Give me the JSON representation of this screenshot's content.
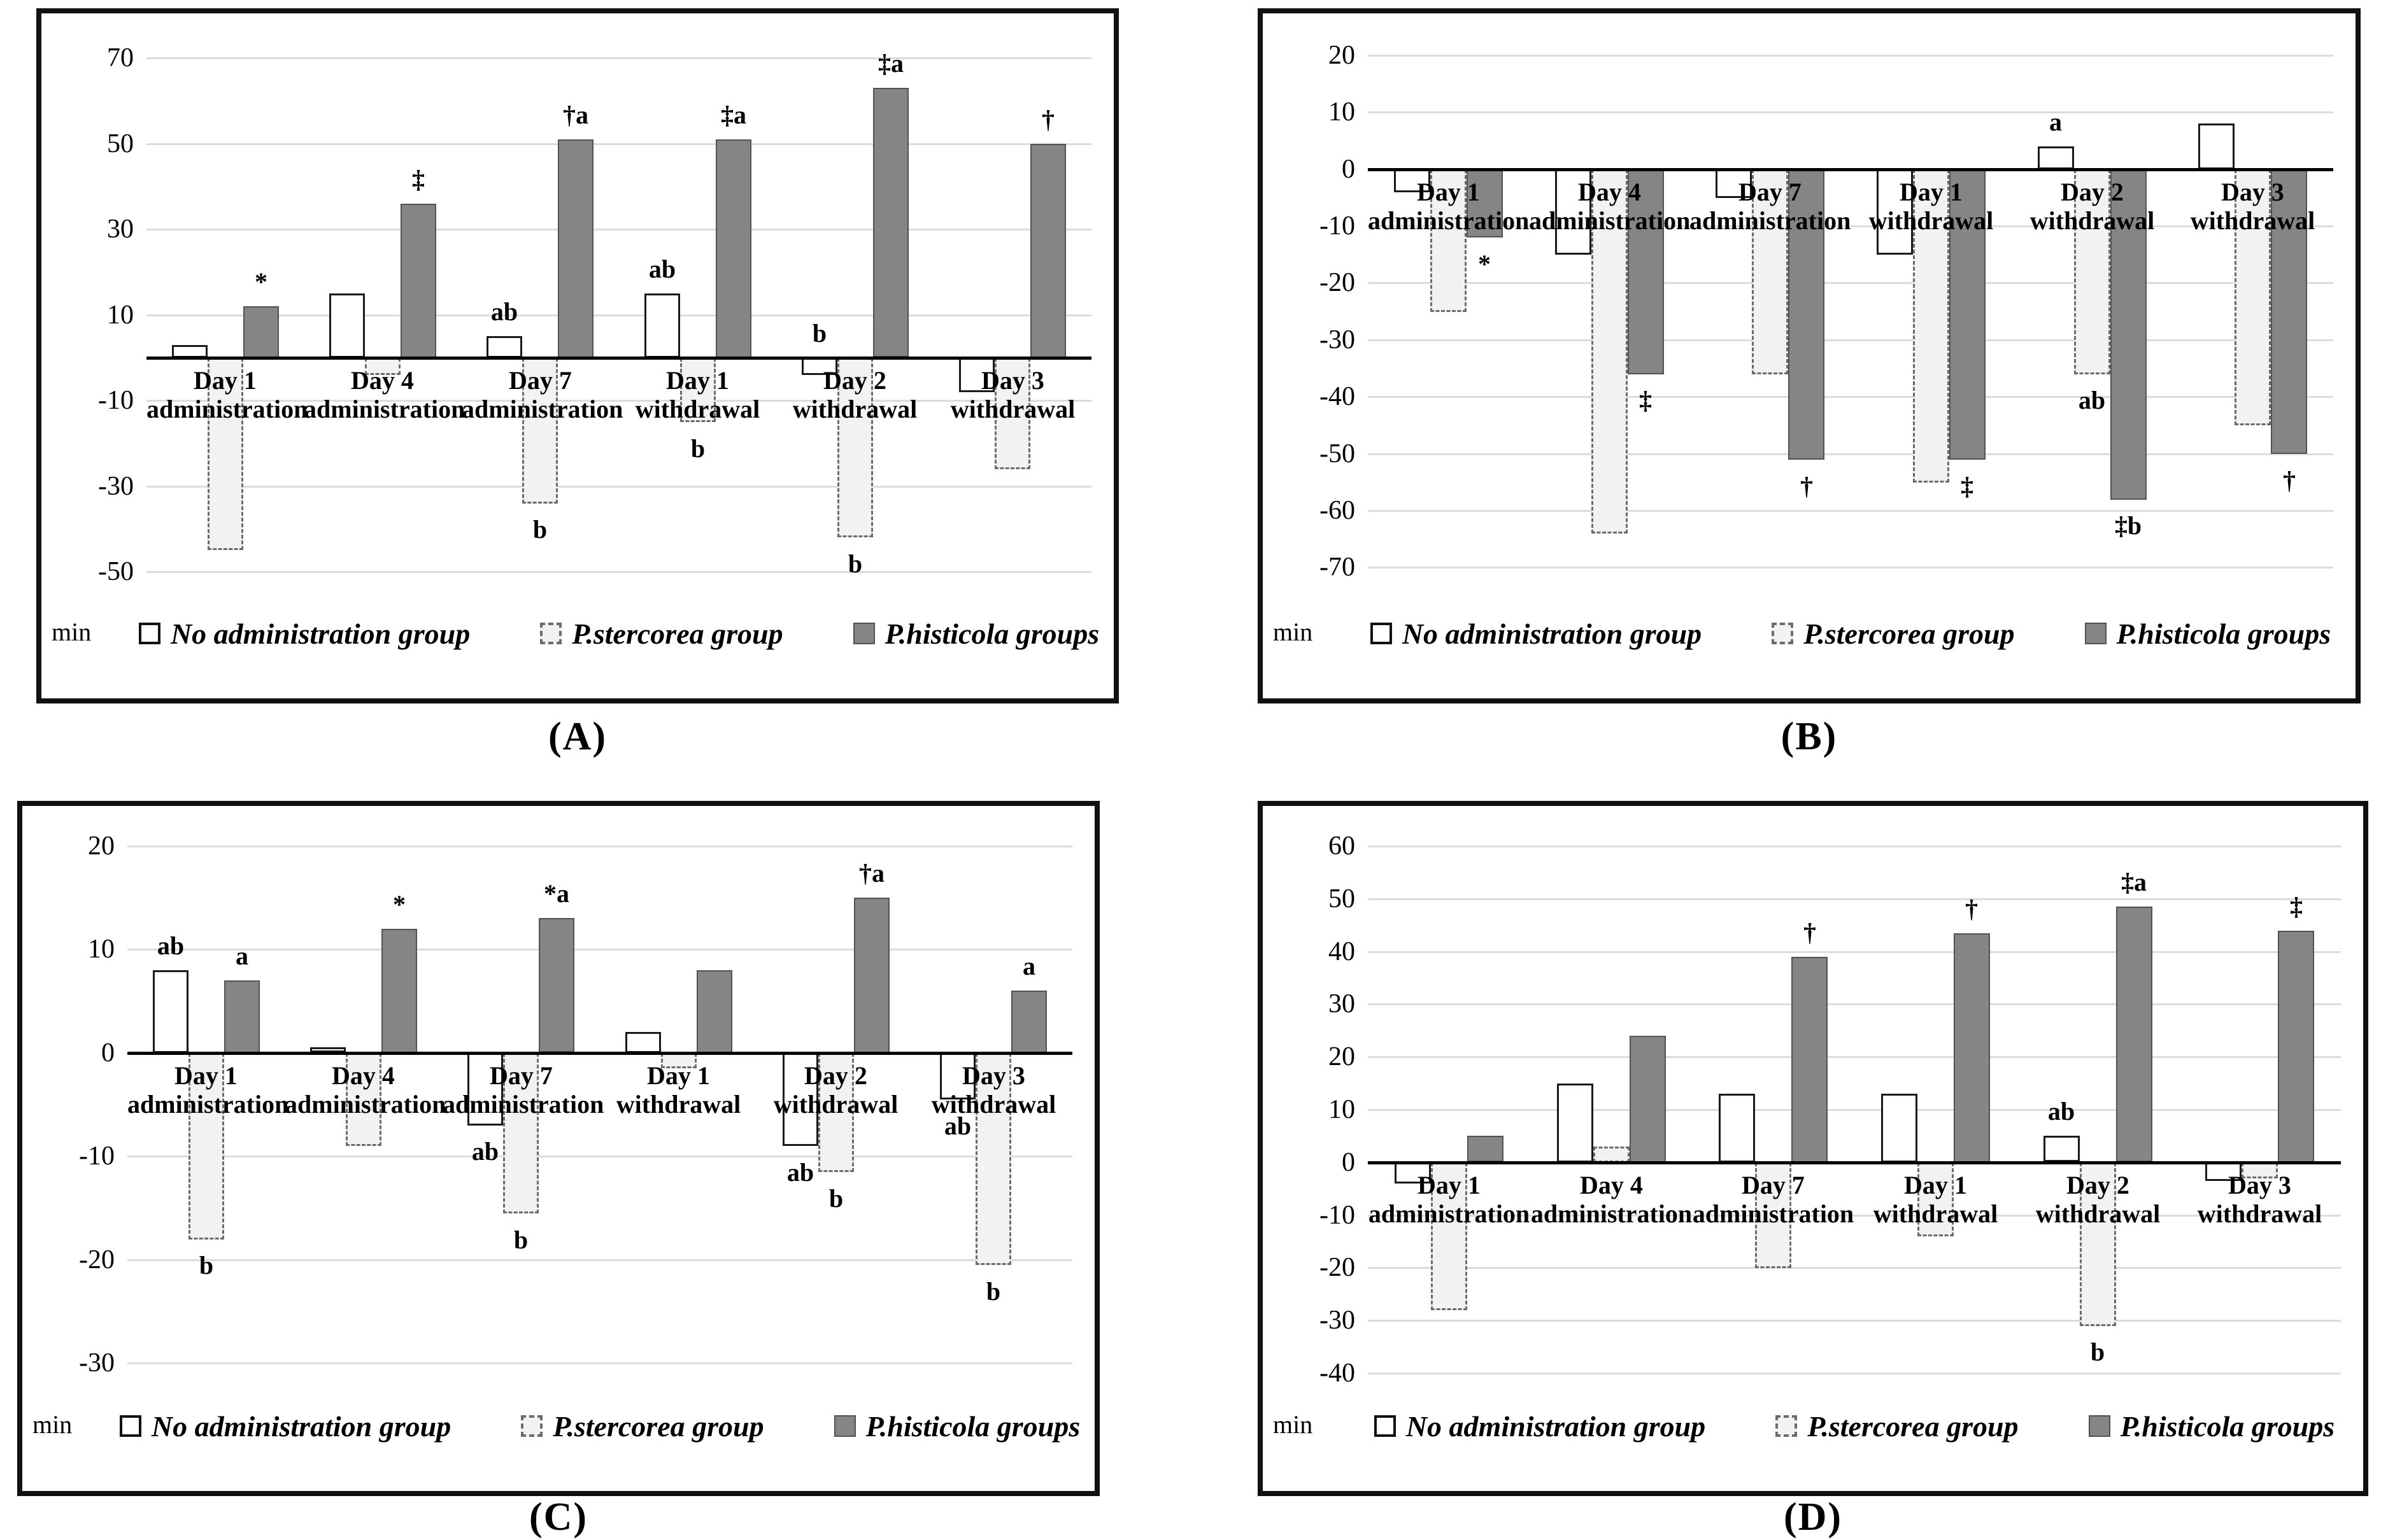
{
  "figure": {
    "description": "Four grouped bar charts (A-D) of time (min) across administration and withdrawal days for three treatment groups",
    "unit_label": "min"
  },
  "colors": {
    "no_admin_fill": "#ffffff",
    "no_admin_border": "#1a1a1a",
    "stercorea_fill": "#f2f2f2",
    "stercorea_border": "#6b6b6b",
    "histicola_fill": "#858585",
    "histicola_border": "#525252",
    "gridline": "#dcdcdc",
    "axis": "#000000",
    "panel_border": "#111111"
  },
  "legend": {
    "items": [
      {
        "key": "no_admin",
        "label": "No administration group"
      },
      {
        "key": "stercorea",
        "label": "P.stercorea group"
      },
      {
        "key": "histicola",
        "label": "P.histicola groups"
      }
    ]
  },
  "panels": [
    {
      "letter": "(A)"
    },
    {
      "letter": "(B)"
    },
    {
      "letter": "(C)"
    },
    {
      "letter": "(D)"
    }
  ],
  "chart_data": [
    {
      "type": "bar",
      "title": "",
      "ylabel": "min",
      "ylim": [
        -57,
        76
      ],
      "yticks": [
        70,
        50,
        30,
        10,
        -10,
        -30,
        -50
      ],
      "grid": true,
      "legend_position": "bottom",
      "categories": [
        "Day 1\nadministration",
        "Day 4\nadministration",
        "Day 7\nadministration",
        "Day 1\nwithdrawal",
        "Day 2\nwithdrawal",
        "Day 3\nwithdrawal"
      ],
      "series": [
        {
          "name": "No administration group",
          "key": "no_admin",
          "values": [
            3,
            15,
            5,
            15,
            -4,
            -8
          ],
          "annotations": [
            null,
            null,
            {
              "text": "ab",
              "pos": "above"
            },
            {
              "text": "ab",
              "pos": "above"
            },
            {
              "text": "b",
              "pos": "above"
            },
            null
          ]
        },
        {
          "name": "P.stercorea group",
          "key": "stercorea",
          "values": [
            -45,
            -4,
            -34,
            -15,
            -42,
            -26
          ],
          "annotations": [
            null,
            null,
            {
              "text": "b",
              "pos": "below"
            },
            {
              "text": "b",
              "pos": "below"
            },
            {
              "text": "b",
              "pos": "below"
            },
            null
          ]
        },
        {
          "name": "P.histicola groups",
          "key": "histicola",
          "values": [
            12,
            36,
            51,
            51,
            63,
            50
          ],
          "annotations": [
            {
              "text": "*",
              "pos": "above"
            },
            {
              "text": "‡",
              "pos": "above"
            },
            {
              "text": "†a",
              "pos": "above"
            },
            {
              "text": "‡a",
              "pos": "above"
            },
            {
              "text": "‡a",
              "pos": "above"
            },
            {
              "text": "†",
              "pos": "above"
            }
          ]
        }
      ]
    },
    {
      "type": "bar",
      "title": "",
      "ylabel": "min",
      "ylim": [
        -76,
        24
      ],
      "yticks": [
        20,
        10,
        0,
        -10,
        -20,
        -30,
        -40,
        -50,
        -60,
        -70
      ],
      "grid": true,
      "legend_position": "bottom",
      "categories": [
        "Day 1\nadministration",
        "Day 4\nadministration",
        "Day 7\nadministration",
        "Day 1\nwithdrawal",
        "Day 2\nwithdrawal",
        "Day 3\nwithdrawal"
      ],
      "series": [
        {
          "name": "No administration group",
          "key": "no_admin",
          "values": [
            -4,
            -15,
            -5,
            -15,
            4,
            8
          ],
          "annotations": [
            null,
            null,
            null,
            null,
            {
              "text": "a",
              "pos": "above"
            },
            null
          ]
        },
        {
          "name": "P.stercorea group",
          "key": "stercorea",
          "values": [
            -25,
            -64,
            -36,
            -55,
            -36,
            -45
          ],
          "annotations": [
            null,
            null,
            null,
            null,
            {
              "text": "ab",
              "pos": "below"
            },
            null
          ]
        },
        {
          "name": "P.histicola groups",
          "key": "histicola",
          "values": [
            -12,
            -36,
            -51,
            -51,
            -58,
            -50
          ],
          "annotations": [
            {
              "text": "*",
              "pos": "below"
            },
            {
              "text": "‡",
              "pos": "below"
            },
            {
              "text": "†",
              "pos": "below"
            },
            {
              "text": "‡",
              "pos": "below"
            },
            {
              "text": "‡b",
              "pos": "below"
            },
            {
              "text": "†",
              "pos": "below"
            }
          ]
        }
      ]
    },
    {
      "type": "bar",
      "title": "",
      "ylabel": "min",
      "ylim": [
        -33,
        22
      ],
      "yticks": [
        20,
        10,
        0,
        -10,
        -20,
        -30
      ],
      "grid": true,
      "legend_position": "bottom",
      "categories": [
        "Day 1\nadministration",
        "Day 4\nadministration",
        "Day 7\nadministration",
        "Day 1\nwithdrawal",
        "Day 2\nwithdrawal",
        "Day 3\nwithdrawal"
      ],
      "series": [
        {
          "name": "No administration group",
          "key": "no_admin",
          "values": [
            8,
            0.5,
            -7,
            2,
            -9,
            -4.5
          ],
          "annotations": [
            {
              "text": "ab",
              "pos": "above"
            },
            null,
            {
              "text": "ab",
              "pos": "below"
            },
            null,
            {
              "text": "ab",
              "pos": "below"
            },
            {
              "text": "ab",
              "pos": "below"
            }
          ]
        },
        {
          "name": "P.stercorea group",
          "key": "stercorea",
          "values": [
            -18,
            -9,
            -15.5,
            -1.5,
            -11.5,
            -20.5
          ],
          "annotations": [
            {
              "text": "b",
              "pos": "below"
            },
            null,
            {
              "text": "b",
              "pos": "below"
            },
            null,
            {
              "text": "b",
              "pos": "below"
            },
            {
              "text": "b",
              "pos": "below"
            }
          ]
        },
        {
          "name": "P.histicola groups",
          "key": "histicola",
          "values": [
            7,
            12,
            13,
            8,
            15,
            6
          ],
          "annotations": [
            {
              "text": "a",
              "pos": "above"
            },
            {
              "text": "*",
              "pos": "above"
            },
            {
              "text": "*a",
              "pos": "above"
            },
            null,
            {
              "text": "†a",
              "pos": "above"
            },
            {
              "text": "a",
              "pos": "above"
            }
          ]
        }
      ]
    },
    {
      "type": "bar",
      "title": "",
      "ylabel": "min",
      "ylim": [
        -44,
        64
      ],
      "yticks": [
        60,
        50,
        40,
        30,
        20,
        10,
        0,
        -10,
        -20,
        -30,
        -40
      ],
      "grid": true,
      "legend_position": "bottom",
      "categories": [
        "Day 1\nadministration",
        "Day 4\nadministration",
        "Day 7\nadministration",
        "Day 1\nwithdrawal",
        "Day 2\nwithdrawal",
        "Day 3\nwithdrawal"
      ],
      "series": [
        {
          "name": "No administration group",
          "key": "no_admin",
          "values": [
            -4,
            15,
            13,
            13,
            5,
            -3.5
          ],
          "annotations": [
            null,
            null,
            null,
            null,
            {
              "text": "ab",
              "pos": "above"
            },
            null
          ]
        },
        {
          "name": "P.stercorea group",
          "key": "stercorea",
          "values": [
            -28,
            3,
            -20,
            -14,
            -31,
            -3
          ],
          "annotations": [
            null,
            null,
            null,
            null,
            {
              "text": "b",
              "pos": "below"
            },
            null
          ]
        },
        {
          "name": "P.histicola groups",
          "key": "histicola",
          "values": [
            5,
            24,
            39,
            43.5,
            48.5,
            44
          ],
          "annotations": [
            null,
            null,
            {
              "text": "†",
              "pos": "above"
            },
            {
              "text": "†",
              "pos": "above"
            },
            {
              "text": "‡a",
              "pos": "above"
            },
            {
              "text": "‡",
              "pos": "above"
            }
          ]
        }
      ]
    }
  ]
}
